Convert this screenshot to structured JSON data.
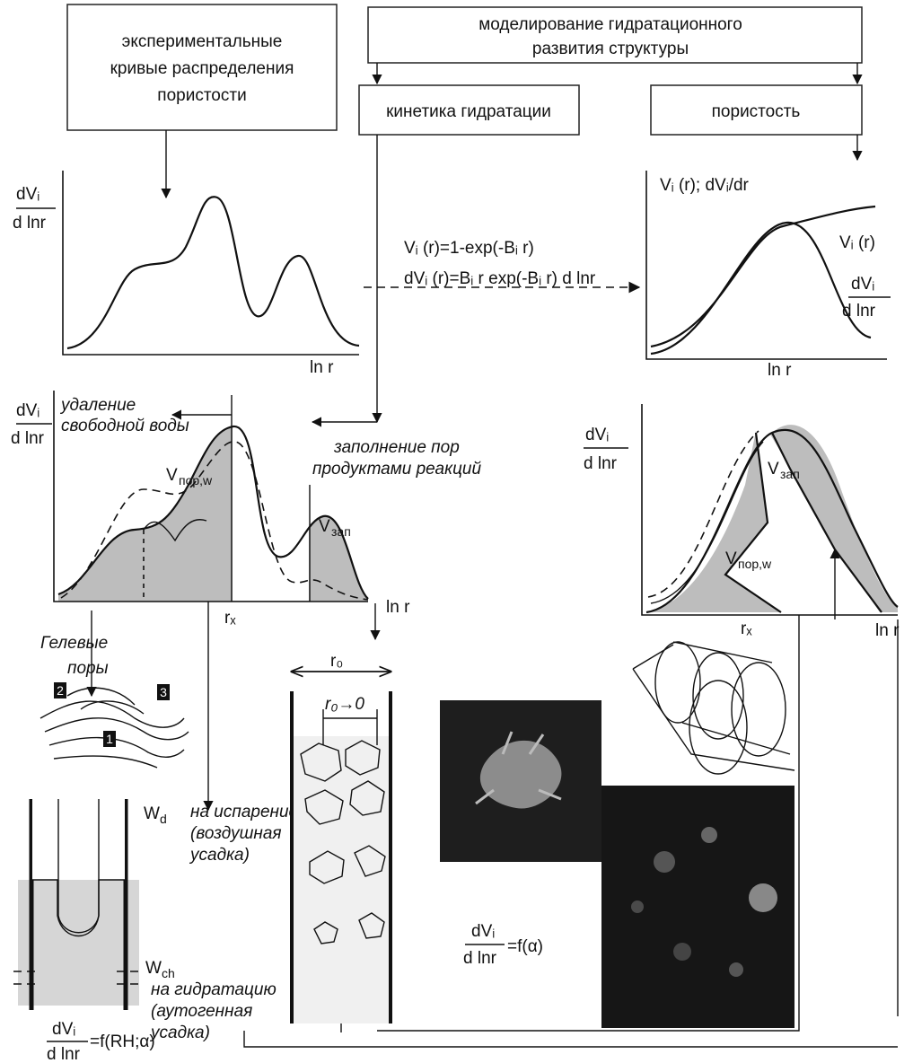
{
  "boxes": {
    "experimental": [
      "экспериментальные",
      "кривые распределения",
      "пористости"
    ],
    "modeling": [
      "моделирование гидратационного",
      "развития структуры"
    ],
    "kinetics": "кинетика гидратации",
    "porosity": "пористость"
  },
  "panel_experimental": {
    "y_label_top": "dVᵢ",
    "y_label_bottom": "d lnr",
    "x_label": "ln r"
  },
  "formulas": [
    "Vᵢ (r)=1-exp(-Bᵢ r)",
    "dVᵢ (r)=Bᵢ r exp(-Bᵢ r) d lnr"
  ],
  "panel_model": {
    "y_label": "Vᵢ (r); dVᵢ/dr",
    "curve_label": "Vᵢ (r)",
    "deriv_top": "dVᵢ",
    "deriv_bottom": "d lnr",
    "x_label": "ln r"
  },
  "panel_hydration": {
    "y_label_top": "dVᵢ",
    "y_label_bottom": "d lnr",
    "removal": [
      "удаление",
      "свободной воды"
    ],
    "filling": [
      "заполнение пор",
      "продуктами реакций"
    ],
    "v_pore": {
      "main": "V",
      "sub": "пор,w"
    },
    "v_fill": {
      "main": "V",
      "sub": "зап"
    },
    "x_label": "ln r",
    "rx": "rₓ"
  },
  "panel_porosity": {
    "y_label_top": "dVᵢ",
    "y_label_bottom": "d lnr",
    "v_fill": {
      "main": "V",
      "sub": "зап"
    },
    "v_pore": {
      "main": "V",
      "sub": "пор,w"
    },
    "rx": "rₓ",
    "x_label": "ln r"
  },
  "gel_pores": {
    "label": [
      "Гелевые",
      "поры"
    ],
    "markers": [
      "1",
      "2",
      "3"
    ]
  },
  "shrinkage": {
    "wd": {
      "main": "W",
      "sub": "d"
    },
    "evaporation": [
      "на испарение",
      "(воздушная",
      "усадка)"
    ],
    "wch": {
      "main": "W",
      "sub": "ch"
    },
    "hydration": [
      "на гидратацию",
      "(аутогенная",
      "усадка)"
    ],
    "formula_top": "dVᵢ",
    "formula_bottom": "d lnr",
    "formula_rhs": "=f(RH;α)"
  },
  "pore_tube": {
    "r0": "r₀",
    "r0_to_zero": "r₀→0"
  },
  "photos": {
    "formula_top": "dVᵢ",
    "formula_bottom": "d lnr",
    "formula_rhs": "=f(α)"
  }
}
